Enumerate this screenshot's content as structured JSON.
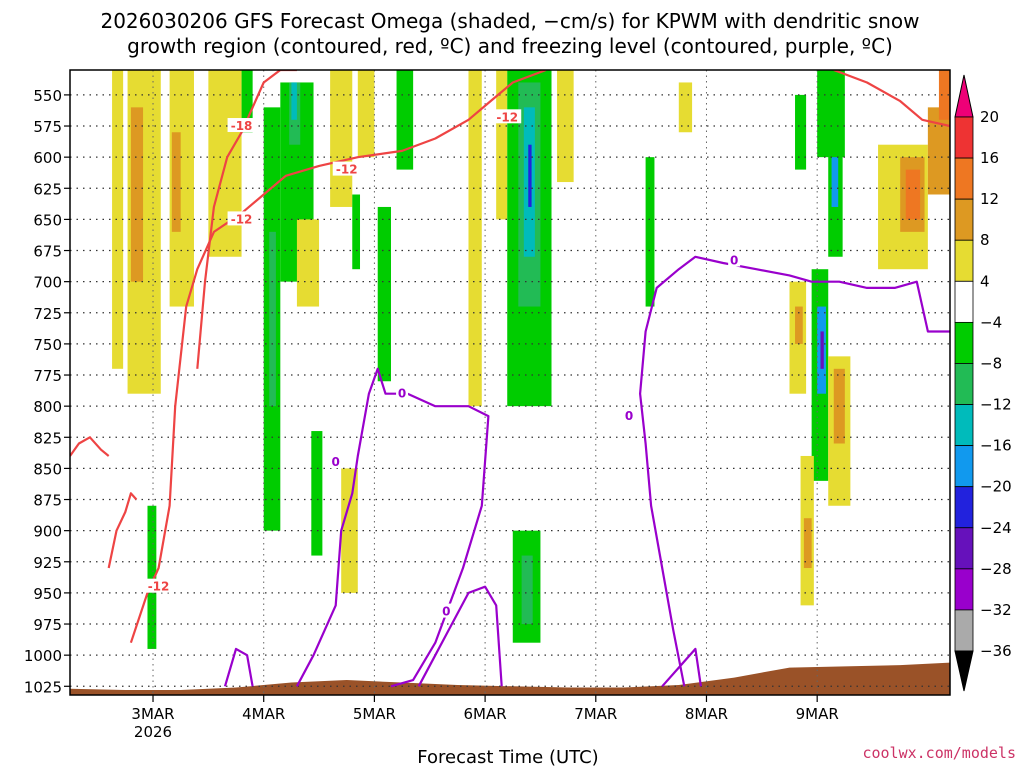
{
  "chart_data": {
    "type": "heatmap",
    "title_lines": [
      "2026030206 GFS Forecast Omega (shaded, −cm/s) for KPWM with dendritic snow",
      "growth region (contoured, red, ºC) and freezing level (contoured, purple, ºC)"
    ],
    "xlabel": "Forecast Time (UTC)",
    "credit": "coolwx.com/models",
    "x_range_days": [
      0.0,
      7.95
    ],
    "x_ticks": [
      {
        "day": 0.75,
        "label": "3MAR",
        "sub": "2026"
      },
      {
        "day": 1.75,
        "label": "4MAR",
        "sub": ""
      },
      {
        "day": 2.75,
        "label": "5MAR",
        "sub": ""
      },
      {
        "day": 3.75,
        "label": "6MAR",
        "sub": ""
      },
      {
        "day": 4.75,
        "label": "7MAR",
        "sub": ""
      },
      {
        "day": 5.75,
        "label": "8MAR",
        "sub": ""
      },
      {
        "day": 6.75,
        "label": "9MAR",
        "sub": ""
      }
    ],
    "y_ticks": [
      550,
      575,
      600,
      625,
      650,
      675,
      700,
      725,
      750,
      775,
      800,
      825,
      850,
      875,
      900,
      925,
      950,
      975,
      1000,
      1025
    ],
    "colorbar": {
      "labels": [
        "20",
        "16",
        "12",
        "8",
        "4",
        "−4",
        "−8",
        "−12",
        "−16",
        "−20",
        "−24",
        "−28",
        "−32",
        "−36"
      ],
      "colors": [
        "#ee0077",
        "#ee3333",
        "#ee7722",
        "#dd9922",
        "#e6dc32",
        "#ffffff",
        "#00cc00",
        "#22bb55",
        "#00bbbb",
        "#1199ee",
        "#2222dd",
        "#6611bb",
        "#9900cc",
        "#aaaaaa",
        "#000000"
      ]
    },
    "omega_regions": [
      {
        "color": "#e6dc32",
        "t0": 0.38,
        "t1": 0.48,
        "p0": 530,
        "p1": 770
      },
      {
        "color": "#e6dc32",
        "t0": 0.52,
        "t1": 0.82,
        "p0": 530,
        "p1": 790
      },
      {
        "color": "#dd9922",
        "t0": 0.55,
        "t1": 0.66,
        "p0": 560,
        "p1": 700
      },
      {
        "color": "#e6dc32",
        "t0": 0.9,
        "t1": 1.12,
        "p0": 530,
        "p1": 720
      },
      {
        "color": "#dd9922",
        "t0": 0.92,
        "t1": 1.0,
        "p0": 580,
        "p1": 660
      },
      {
        "color": "#e6dc32",
        "t0": 1.25,
        "t1": 1.55,
        "p0": 530,
        "p1": 680
      },
      {
        "color": "#00cc00",
        "t0": 0.7,
        "t1": 0.78,
        "p0": 880,
        "p1": 995
      },
      {
        "color": "#00cc00",
        "t0": 1.55,
        "t1": 1.65,
        "p0": 530,
        "p1": 580
      },
      {
        "color": "#00cc00",
        "t0": 1.75,
        "t1": 1.9,
        "p0": 560,
        "p1": 900
      },
      {
        "color": "#22bb55",
        "t0": 1.8,
        "t1": 1.86,
        "p0": 660,
        "p1": 800
      },
      {
        "color": "#00cc00",
        "t0": 1.9,
        "t1": 2.2,
        "p0": 540,
        "p1": 700
      },
      {
        "color": "#22bb55",
        "t0": 1.98,
        "t1": 2.08,
        "p0": 540,
        "p1": 590
      },
      {
        "color": "#00bbbb",
        "t0": 2.0,
        "t1": 2.05,
        "p0": 540,
        "p1": 570
      },
      {
        "color": "#00cc00",
        "t0": 2.18,
        "t1": 2.28,
        "p0": 820,
        "p1": 920
      },
      {
        "color": "#e6dc32",
        "t0": 2.05,
        "t1": 2.25,
        "p0": 650,
        "p1": 720
      },
      {
        "color": "#e6dc32",
        "t0": 2.35,
        "t1": 2.55,
        "p0": 530,
        "p1": 640
      },
      {
        "color": "#e6dc32",
        "t0": 2.45,
        "t1": 2.6,
        "p0": 850,
        "p1": 950
      },
      {
        "color": "#e6dc32",
        "t0": 2.6,
        "t1": 2.75,
        "p0": 530,
        "p1": 600
      },
      {
        "color": "#00cc00",
        "t0": 2.55,
        "t1": 2.62,
        "p0": 630,
        "p1": 690
      },
      {
        "color": "#00cc00",
        "t0": 2.78,
        "t1": 2.9,
        "p0": 640,
        "p1": 780
      },
      {
        "color": "#00cc00",
        "t0": 2.95,
        "t1": 3.1,
        "p0": 530,
        "p1": 610
      },
      {
        "color": "#e6dc32",
        "t0": 3.6,
        "t1": 3.72,
        "p0": 530,
        "p1": 800
      },
      {
        "color": "#e6dc32",
        "t0": 3.85,
        "t1": 3.95,
        "p0": 530,
        "p1": 650
      },
      {
        "color": "#00cc00",
        "t0": 3.95,
        "t1": 4.35,
        "p0": 530,
        "p1": 800
      },
      {
        "color": "#22bb55",
        "t0": 4.05,
        "t1": 4.25,
        "p0": 540,
        "p1": 720
      },
      {
        "color": "#00bbbb",
        "t0": 4.1,
        "t1": 4.2,
        "p0": 560,
        "p1": 680
      },
      {
        "color": "#2222dd",
        "t0": 4.14,
        "t1": 4.17,
        "p0": 590,
        "p1": 640
      },
      {
        "color": "#00cc00",
        "t0": 4.0,
        "t1": 4.25,
        "p0": 900,
        "p1": 990
      },
      {
        "color": "#22bb55",
        "t0": 4.08,
        "t1": 4.18,
        "p0": 920,
        "p1": 975
      },
      {
        "color": "#e6dc32",
        "t0": 4.4,
        "t1": 4.55,
        "p0": 530,
        "p1": 620
      },
      {
        "color": "#00cc00",
        "t0": 5.2,
        "t1": 5.28,
        "p0": 600,
        "p1": 720
      },
      {
        "color": "#e6dc32",
        "t0": 5.5,
        "t1": 5.62,
        "p0": 540,
        "p1": 580
      },
      {
        "color": "#00cc00",
        "t0": 6.55,
        "t1": 6.65,
        "p0": 550,
        "p1": 610
      },
      {
        "color": "#00cc00",
        "t0": 6.75,
        "t1": 7.0,
        "p0": 530,
        "p1": 600
      },
      {
        "color": "#e6dc32",
        "t0": 6.5,
        "t1": 6.65,
        "p0": 700,
        "p1": 790
      },
      {
        "color": "#dd9922",
        "t0": 6.55,
        "t1": 6.62,
        "p0": 720,
        "p1": 750
      },
      {
        "color": "#00cc00",
        "t0": 6.7,
        "t1": 6.85,
        "p0": 690,
        "p1": 860
      },
      {
        "color": "#1199ee",
        "t0": 6.75,
        "t1": 6.83,
        "p0": 720,
        "p1": 790
      },
      {
        "color": "#6611bb",
        "t0": 6.78,
        "t1": 6.81,
        "p0": 740,
        "p1": 770
      },
      {
        "color": "#e6dc32",
        "t0": 6.6,
        "t1": 6.72,
        "p0": 840,
        "p1": 960
      },
      {
        "color": "#dd9922",
        "t0": 6.63,
        "t1": 6.7,
        "p0": 890,
        "p1": 930
      },
      {
        "color": "#e6dc32",
        "t0": 6.85,
        "t1": 7.05,
        "p0": 760,
        "p1": 880
      },
      {
        "color": "#dd9922",
        "t0": 6.9,
        "t1": 7.0,
        "p0": 770,
        "p1": 830
      },
      {
        "color": "#00cc00",
        "t0": 6.85,
        "t1": 6.98,
        "p0": 580,
        "p1": 680
      },
      {
        "color": "#1199ee",
        "t0": 6.88,
        "t1": 6.94,
        "p0": 600,
        "p1": 640
      },
      {
        "color": "#e6dc32",
        "t0": 7.3,
        "t1": 7.75,
        "p0": 590,
        "p1": 690
      },
      {
        "color": "#dd9922",
        "t0": 7.5,
        "t1": 7.72,
        "p0": 600,
        "p1": 660
      },
      {
        "color": "#ee7722",
        "t0": 7.55,
        "t1": 7.68,
        "p0": 610,
        "p1": 650
      },
      {
        "color": "#dd9922",
        "t0": 7.75,
        "t1": 7.95,
        "p0": 560,
        "p1": 630
      },
      {
        "color": "#ee7722",
        "t0": 7.85,
        "t1": 7.95,
        "p0": 530,
        "p1": 570
      }
    ],
    "dendritic_contours": [
      {
        "label": "-18",
        "label_at": [
          1.55,
          575
        ],
        "points": [
          [
            1.15,
            770
          ],
          [
            1.22,
            700
          ],
          [
            1.3,
            640
          ],
          [
            1.42,
            600
          ],
          [
            1.55,
            580
          ],
          [
            1.65,
            560
          ],
          [
            1.75,
            540
          ],
          [
            1.9,
            530
          ],
          [
            2.05,
            530
          ]
        ]
      },
      {
        "label": "-12",
        "label_at": [
          1.55,
          650
        ],
        "points": [
          [
            0.55,
            990
          ],
          [
            0.7,
            950
          ],
          [
            0.8,
            930
          ],
          [
            0.9,
            880
          ],
          [
            0.95,
            800
          ],
          [
            1.05,
            720
          ],
          [
            1.15,
            690
          ],
          [
            1.3,
            660
          ],
          [
            1.55,
            645
          ],
          [
            1.75,
            630
          ],
          [
            1.95,
            615
          ],
          [
            2.25,
            607
          ],
          [
            2.6,
            600
          ],
          [
            3.0,
            595
          ],
          [
            3.3,
            585
          ],
          [
            3.6,
            570
          ],
          [
            3.8,
            555
          ],
          [
            4.0,
            540
          ],
          [
            4.3,
            530
          ]
        ]
      },
      {
        "label": "-12",
        "label_at": [
          2.5,
          610
        ],
        "points": [
          [
            0.0,
            840
          ],
          [
            0.08,
            830
          ],
          [
            0.18,
            825
          ],
          [
            0.28,
            835
          ],
          [
            0.35,
            840
          ]
        ]
      },
      {
        "label": "-12",
        "label_at": [
          0.8,
          945
        ],
        "points": [
          [
            0.35,
            930
          ],
          [
            0.42,
            900
          ],
          [
            0.5,
            885
          ],
          [
            0.55,
            870
          ],
          [
            0.6,
            875
          ]
        ]
      },
      {
        "label": "-12",
        "label_at": [
          3.95,
          568
        ],
        "points": [
          [
            6.9,
            530
          ],
          [
            7.2,
            540
          ],
          [
            7.5,
            555
          ],
          [
            7.7,
            570
          ],
          [
            7.95,
            575
          ]
        ]
      }
    ],
    "freezing_contours": [
      {
        "label": "0",
        "label_at": [
          2.4,
          845
        ],
        "points": [
          [
            1.4,
            1025
          ],
          [
            1.5,
            995
          ],
          [
            1.6,
            1000
          ],
          [
            1.65,
            1025
          ]
        ]
      },
      {
        "label": "0",
        "label_at": [
          3.0,
          790
        ],
        "points": [
          [
            2.05,
            1025
          ],
          [
            2.2,
            1000
          ],
          [
            2.3,
            980
          ],
          [
            2.4,
            960
          ],
          [
            2.45,
            900
          ],
          [
            2.55,
            870
          ],
          [
            2.6,
            840
          ],
          [
            2.7,
            790
          ],
          [
            2.78,
            770
          ],
          [
            2.85,
            790
          ],
          [
            3.05,
            790
          ],
          [
            3.3,
            800
          ],
          [
            3.6,
            800
          ],
          [
            3.78,
            808
          ],
          [
            3.72,
            880
          ],
          [
            3.55,
            930
          ],
          [
            3.3,
            990
          ],
          [
            3.1,
            1020
          ],
          [
            2.9,
            1025
          ]
        ]
      },
      {
        "label": "0",
        "label_at": [
          3.4,
          965
        ],
        "points": [
          [
            3.15,
            1025
          ],
          [
            3.3,
            1000
          ],
          [
            3.45,
            975
          ],
          [
            3.6,
            950
          ],
          [
            3.75,
            945
          ],
          [
            3.85,
            960
          ],
          [
            3.9,
            1025
          ]
        ]
      },
      {
        "label": "0",
        "label_at": [
          5.05,
          808
        ],
        "points": [
          [
            5.55,
            1025
          ],
          [
            5.45,
            980
          ],
          [
            5.35,
            930
          ],
          [
            5.25,
            880
          ],
          [
            5.2,
            830
          ],
          [
            5.15,
            790
          ],
          [
            5.2,
            740
          ],
          [
            5.3,
            705
          ],
          [
            5.5,
            690
          ],
          [
            5.65,
            680
          ],
          [
            5.9,
            685
          ],
          [
            6.2,
            690
          ],
          [
            6.5,
            695
          ],
          [
            6.7,
            700
          ],
          [
            6.95,
            700
          ],
          [
            7.2,
            705
          ],
          [
            7.45,
            705
          ],
          [
            7.65,
            700
          ],
          [
            7.75,
            740
          ],
          [
            7.95,
            740
          ]
        ]
      },
      {
        "label": "0",
        "label_at": [
          6.0,
          683
        ],
        "points": [
          [
            5.35,
            1025
          ],
          [
            5.5,
            1010
          ],
          [
            5.65,
            995
          ],
          [
            5.7,
            1025
          ]
        ]
      }
    ],
    "terrain_color": "#9a5228",
    "terrain_pressure_profile": [
      [
        0.0,
        1027
      ],
      [
        0.5,
        1028
      ],
      [
        1.0,
        1028
      ],
      [
        1.5,
        1026
      ],
      [
        2.0,
        1022
      ],
      [
        2.5,
        1020
      ],
      [
        3.0,
        1022
      ],
      [
        3.5,
        1024
      ],
      [
        4.0,
        1025
      ],
      [
        4.5,
        1026
      ],
      [
        5.0,
        1026
      ],
      [
        5.5,
        1024
      ],
      [
        6.0,
        1018
      ],
      [
        6.5,
        1010
      ],
      [
        7.0,
        1009
      ],
      [
        7.5,
        1008
      ],
      [
        7.95,
        1006
      ]
    ]
  }
}
